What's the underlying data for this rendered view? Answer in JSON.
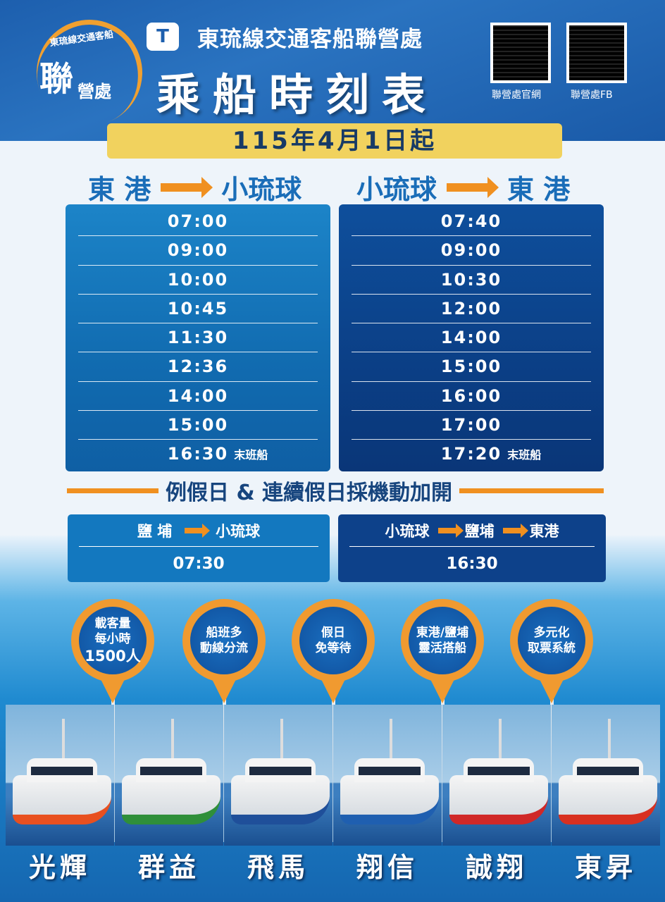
{
  "header": {
    "logo_ring_text": "東琉線交通客船",
    "logo_text_big": "聯",
    "logo_text_small": "營處",
    "brand_mark": "T",
    "organization": "東琉線交通客船聯營處",
    "title": "乘船時刻表",
    "qr": [
      {
        "label": "聯營處官網"
      },
      {
        "label": "聯營處FB"
      }
    ]
  },
  "effective_date": "115年4月1日起",
  "routes": [
    {
      "from": "東 港",
      "to": "小琉球",
      "times": [
        "07:00",
        "09:00",
        "10:00",
        "10:45",
        "11:30",
        "12:36",
        "14:00",
        "15:00",
        "16:30"
      ],
      "last_label": "末班船"
    },
    {
      "from": "小琉球",
      "to": "東 港",
      "times": [
        "07:40",
        "09:00",
        "10:30",
        "12:00",
        "14:00",
        "15:00",
        "16:00",
        "17:00",
        "17:20"
      ],
      "last_label": "末班船"
    }
  ],
  "extra_notice": "例假日 & 連續假日採機動加開",
  "extra_routes": [
    {
      "stops": [
        "鹽 埔",
        "小琉球"
      ],
      "time": "07:30"
    },
    {
      "stops": [
        "小琉球",
        "鹽埔",
        "東港"
      ],
      "time": "16:30"
    }
  ],
  "features": [
    {
      "lines": [
        "載客量",
        "每小時",
        "1500人"
      ]
    },
    {
      "lines": [
        "船班多",
        "動線分流"
      ]
    },
    {
      "lines": [
        "假日",
        "免等待"
      ]
    },
    {
      "lines": [
        "東港/鹽埔",
        "靈活搭船"
      ]
    },
    {
      "lines": [
        "多元化",
        "取票系統"
      ]
    }
  ],
  "ships": [
    {
      "name": "光輝",
      "color": "#e85020"
    },
    {
      "name": "群益",
      "color": "#2f8f3a"
    },
    {
      "name": "飛馬",
      "color": "#1f4f9a"
    },
    {
      "name": "翔信",
      "color": "#1f5fb0"
    },
    {
      "name": "誠翔",
      "color": "#d02828"
    },
    {
      "name": "東昇",
      "color": "#d83020"
    }
  ],
  "colors": {
    "header_blue": "#1d5fae",
    "accent_orange": "#f09020",
    "date_yellow": "#f1d25e",
    "table_left": "#1378bf",
    "table_right": "#0d418a"
  }
}
